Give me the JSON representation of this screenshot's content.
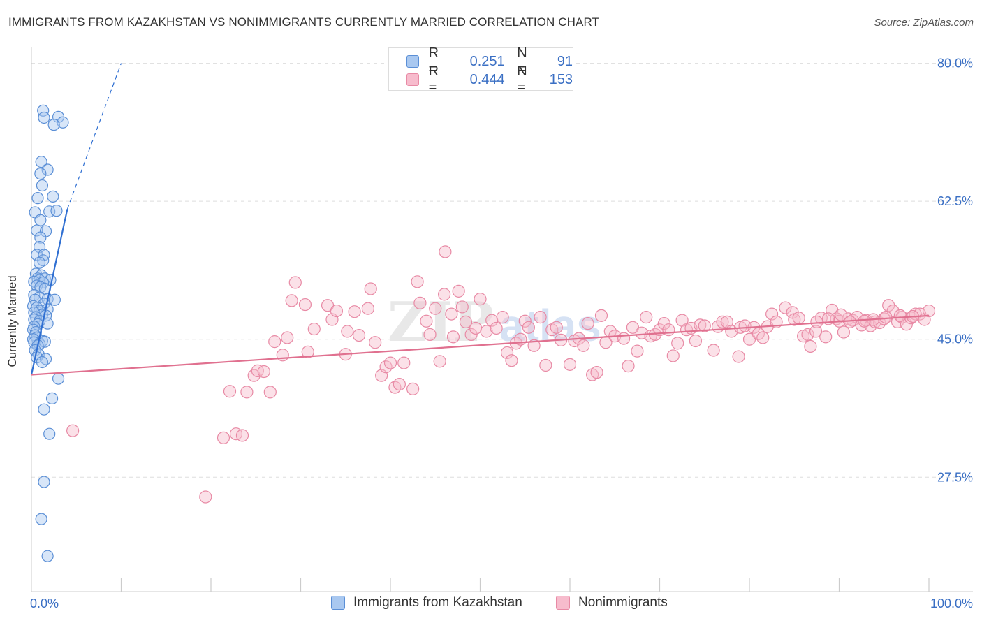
{
  "title": "IMMIGRANTS FROM KAZAKHSTAN VS NONIMMIGRANTS CURRENTLY MARRIED CORRELATION CHART",
  "source": "Source: ZipAtlas.com",
  "watermark": {
    "zip": "ZIP",
    "atlas": "atlas"
  },
  "colors": {
    "blue_fill": "#a9c8f0",
    "blue_stroke": "#5b8fd6",
    "blue_line": "#2f6fd2",
    "pink_fill": "#f7bccd",
    "pink_stroke": "#e88aa5",
    "pink_line": "#e0708f",
    "axis_text": "#3a6fc4",
    "grid": "#dddddd"
  },
  "legend": {
    "series1": {
      "r_label": "R =",
      "r_value": "0.251",
      "n_label": "N =",
      "n_value": "91"
    },
    "series2": {
      "r_label": "R =",
      "r_value": "0.444",
      "n_label": "N =",
      "n_value": "153"
    }
  },
  "bottom_legend": {
    "series1": "Immigrants from Kazakhstan",
    "series2": "Nonimmigrants"
  },
  "chart_data": {
    "type": "scatter",
    "title": "IMMIGRANTS FROM KAZAKHSTAN VS NONIMMIGRANTS CURRENTLY MARRIED CORRELATION CHART",
    "xlabel": "",
    "ylabel": "Currently Married",
    "xlim": [
      0,
      100
    ],
    "ylim": [
      13,
      82
    ],
    "x_tick_labels": [
      "0.0%",
      "100.0%"
    ],
    "y_ticks": [
      27.5,
      45.0,
      62.5,
      80.0
    ],
    "y_tick_labels": [
      "27.5%",
      "45.0%",
      "62.5%",
      "80.0%"
    ],
    "grid": true,
    "legend_position": "top-center",
    "series": [
      {
        "name": "Immigrants from Kazakhstan",
        "color": "#a9c8f0",
        "trend": {
          "x": [
            0.0,
            4.0
          ],
          "y": [
            40.5,
            61.5
          ],
          "dashed_to": [
            10.0,
            80.0
          ]
        },
        "points": [
          [
            1.3,
            74.0
          ],
          [
            1.4,
            73.1
          ],
          [
            3.0,
            73.2
          ],
          [
            3.5,
            72.5
          ],
          [
            2.5,
            72.2
          ],
          [
            1.1,
            67.5
          ],
          [
            1.8,
            66.5
          ],
          [
            1.0,
            66.0
          ],
          [
            1.2,
            64.5
          ],
          [
            0.7,
            62.9
          ],
          [
            2.4,
            63.1
          ],
          [
            0.4,
            61.1
          ],
          [
            2.0,
            61.2
          ],
          [
            2.8,
            61.3
          ],
          [
            1.0,
            60.1
          ],
          [
            0.6,
            58.8
          ],
          [
            1.6,
            58.7
          ],
          [
            1.0,
            57.9
          ],
          [
            0.9,
            56.7
          ],
          [
            0.6,
            55.7
          ],
          [
            1.4,
            55.7
          ],
          [
            1.3,
            55.0
          ],
          [
            0.9,
            54.7
          ],
          [
            0.5,
            53.3
          ],
          [
            1.1,
            53.1
          ],
          [
            0.7,
            52.7
          ],
          [
            1.5,
            52.7
          ],
          [
            0.9,
            52.5
          ],
          [
            2.1,
            52.5
          ],
          [
            0.3,
            52.3
          ],
          [
            1.3,
            52.2
          ],
          [
            0.6,
            51.8
          ],
          [
            1.0,
            51.6
          ],
          [
            1.5,
            51.4
          ],
          [
            0.3,
            50.6
          ],
          [
            0.9,
            50.3
          ],
          [
            1.8,
            50.1
          ],
          [
            2.6,
            50.0
          ],
          [
            0.4,
            50.0
          ],
          [
            0.2,
            49.2
          ],
          [
            1.4,
            49.5
          ],
          [
            0.6,
            49.0
          ],
          [
            1.8,
            48.8
          ],
          [
            0.9,
            48.6
          ],
          [
            0.3,
            48.4
          ],
          [
            1.2,
            48.1
          ],
          [
            1.6,
            48.0
          ],
          [
            0.5,
            47.8
          ],
          [
            0.3,
            47.5
          ],
          [
            0.9,
            47.3
          ],
          [
            1.8,
            47.0
          ],
          [
            0.7,
            46.9
          ],
          [
            0.3,
            46.6
          ],
          [
            0.2,
            46.2
          ],
          [
            0.5,
            45.9
          ],
          [
            0.4,
            45.5
          ],
          [
            0.6,
            45.2
          ],
          [
            0.2,
            45.0
          ],
          [
            1.2,
            44.8
          ],
          [
            0.3,
            44.6
          ],
          [
            0.9,
            44.4
          ],
          [
            1.5,
            44.7
          ],
          [
            0.7,
            44.2
          ],
          [
            0.4,
            43.6
          ],
          [
            0.8,
            43.1
          ],
          [
            0.6,
            42.7
          ],
          [
            1.6,
            42.5
          ],
          [
            1.2,
            42.1
          ],
          [
            3.0,
            40.0
          ],
          [
            2.3,
            37.5
          ],
          [
            1.4,
            36.1
          ],
          [
            2.0,
            33.0
          ],
          [
            1.4,
            26.9
          ],
          [
            1.1,
            22.2
          ],
          [
            1.8,
            17.5
          ]
        ]
      },
      {
        "name": "Nonimmigrants",
        "color": "#f7bccd",
        "trend": {
          "x": [
            0.0,
            100.0
          ],
          "y": [
            40.5,
            48.0
          ]
        },
        "points": [
          [
            4.6,
            33.4
          ],
          [
            19.4,
            25.0
          ],
          [
            21.4,
            32.5
          ],
          [
            22.1,
            38.4
          ],
          [
            22.8,
            33.0
          ],
          [
            23.5,
            32.8
          ],
          [
            24.0,
            38.3
          ],
          [
            24.8,
            40.4
          ],
          [
            25.2,
            41.0
          ],
          [
            25.9,
            40.9
          ],
          [
            26.6,
            38.3
          ],
          [
            27.1,
            44.7
          ],
          [
            28.0,
            43.0
          ],
          [
            28.5,
            45.2
          ],
          [
            29.0,
            49.9
          ],
          [
            29.4,
            52.2
          ],
          [
            30.5,
            49.4
          ],
          [
            30.8,
            43.4
          ],
          [
            31.5,
            46.3
          ],
          [
            33.0,
            49.3
          ],
          [
            33.5,
            47.5
          ],
          [
            34.0,
            48.6
          ],
          [
            35.0,
            43.1
          ],
          [
            35.2,
            46.0
          ],
          [
            36.0,
            48.5
          ],
          [
            36.5,
            45.5
          ],
          [
            37.5,
            48.9
          ],
          [
            37.8,
            51.4
          ],
          [
            38.3,
            44.6
          ],
          [
            39.0,
            40.4
          ],
          [
            39.5,
            41.5
          ],
          [
            40.0,
            42.0
          ],
          [
            40.5,
            38.9
          ],
          [
            41.0,
            39.3
          ],
          [
            41.5,
            42.0
          ],
          [
            42.5,
            38.7
          ],
          [
            43.0,
            52.3
          ],
          [
            43.3,
            49.6
          ],
          [
            44.0,
            47.3
          ],
          [
            44.4,
            45.6
          ],
          [
            45.0,
            48.9
          ],
          [
            45.5,
            42.2
          ],
          [
            46.0,
            50.7
          ],
          [
            46.8,
            48.2
          ],
          [
            46.1,
            56.1
          ],
          [
            47.0,
            45.3
          ],
          [
            47.6,
            51.1
          ],
          [
            48.0,
            49.1
          ],
          [
            48.4,
            47.2
          ],
          [
            49.0,
            45.6
          ],
          [
            49.5,
            46.4
          ],
          [
            50.0,
            50.1
          ],
          [
            50.7,
            46.0
          ],
          [
            51.3,
            47.4
          ],
          [
            51.8,
            46.4
          ],
          [
            52.5,
            47.8
          ],
          [
            53.0,
            43.3
          ],
          [
            53.5,
            42.3
          ],
          [
            54.0,
            44.5
          ],
          [
            54.5,
            45.0
          ],
          [
            55.0,
            47.3
          ],
          [
            55.4,
            46.5
          ],
          [
            56.0,
            44.2
          ],
          [
            56.7,
            47.8
          ],
          [
            57.3,
            41.7
          ],
          [
            58.0,
            46.2
          ],
          [
            58.5,
            46.5
          ],
          [
            59.0,
            44.9
          ],
          [
            60.0,
            41.8
          ],
          [
            60.5,
            44.8
          ],
          [
            61.0,
            45.1
          ],
          [
            61.5,
            44.2
          ],
          [
            62.0,
            47.0
          ],
          [
            62.5,
            40.5
          ],
          [
            63.0,
            40.8
          ],
          [
            63.5,
            48.0
          ],
          [
            64.0,
            44.6
          ],
          [
            64.5,
            46.0
          ],
          [
            65.0,
            45.4
          ],
          [
            66.0,
            45.1
          ],
          [
            66.5,
            41.6
          ],
          [
            67.0,
            46.5
          ],
          [
            67.5,
            43.5
          ],
          [
            68.0,
            45.8
          ],
          [
            68.5,
            47.8
          ],
          [
            69.0,
            45.4
          ],
          [
            69.5,
            45.6
          ],
          [
            70.0,
            46.2
          ],
          [
            70.5,
            47.0
          ],
          [
            71.0,
            46.2
          ],
          [
            71.5,
            42.9
          ],
          [
            72.0,
            44.5
          ],
          [
            72.5,
            47.4
          ],
          [
            73.0,
            46.2
          ],
          [
            73.5,
            46.4
          ],
          [
            74.0,
            44.8
          ],
          [
            74.5,
            46.8
          ],
          [
            75.0,
            46.7
          ],
          [
            76.0,
            43.6
          ],
          [
            76.5,
            46.6
          ],
          [
            77.0,
            47.2
          ],
          [
            77.5,
            47.2
          ],
          [
            78.0,
            46.0
          ],
          [
            78.8,
            42.8
          ],
          [
            79.0,
            46.5
          ],
          [
            79.5,
            46.7
          ],
          [
            80.0,
            45.0
          ],
          [
            80.5,
            46.5
          ],
          [
            81.0,
            45.7
          ],
          [
            81.5,
            45.2
          ],
          [
            82.0,
            46.6
          ],
          [
            82.5,
            48.2
          ],
          [
            83.0,
            47.2
          ],
          [
            84.0,
            49.0
          ],
          [
            84.8,
            48.4
          ],
          [
            85.0,
            47.5
          ],
          [
            86.0,
            45.4
          ],
          [
            86.5,
            45.6
          ],
          [
            86.8,
            44.1
          ],
          [
            87.4,
            46.0
          ],
          [
            88.0,
            47.7
          ],
          [
            88.5,
            45.3
          ],
          [
            89.2,
            48.7
          ],
          [
            89.7,
            47.6
          ],
          [
            90.0,
            47.3
          ],
          [
            90.5,
            45.9
          ],
          [
            91.0,
            47.6
          ],
          [
            91.5,
            47.4
          ],
          [
            92.0,
            47.8
          ],
          [
            92.5,
            46.8
          ],
          [
            93.0,
            47.4
          ],
          [
            93.5,
            46.7
          ],
          [
            94.0,
            47.2
          ],
          [
            94.5,
            47.1
          ],
          [
            95.0,
            47.6
          ],
          [
            95.5,
            49.3
          ],
          [
            96.0,
            48.6
          ],
          [
            96.5,
            47.2
          ],
          [
            97.0,
            47.8
          ],
          [
            97.5,
            46.9
          ],
          [
            98.0,
            47.7
          ],
          [
            98.5,
            48.2
          ],
          [
            99.0,
            48.2
          ],
          [
            99.5,
            47.5
          ],
          [
            100.0,
            48.6
          ],
          [
            98.2,
            47.9
          ],
          [
            96.8,
            48.0
          ],
          [
            95.2,
            47.8
          ],
          [
            93.8,
            47.5
          ],
          [
            92.8,
            47.3
          ],
          [
            91.2,
            47.2
          ],
          [
            90.2,
            48.1
          ],
          [
            88.8,
            47.6
          ],
          [
            87.5,
            47.2
          ],
          [
            85.5,
            47.7
          ]
        ]
      }
    ]
  }
}
